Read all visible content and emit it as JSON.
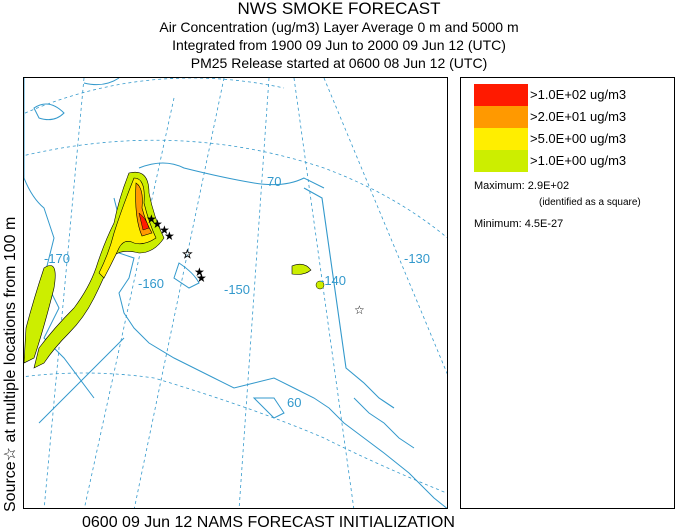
{
  "header": {
    "title": "NWS SMOKE FORECAST",
    "line1": "Air Concentration (ug/m3) Layer Average    0 m and  5000 m",
    "line2": "Integrated from 1900 09 Jun to 2000 09 Jun 12 (UTC)",
    "line3": "PM25 Release started at 0600 08 Jun 12 (UTC)"
  },
  "side_label": "Source☆ at multiple locations  from  100 m",
  "footer": "0600 09 Jun 12 NAMS FORECAST INITIALIZATION",
  "legend": {
    "items": [
      {
        "label": ">1.0E+02 ug/m3",
        "color": "#ff1a00"
      },
      {
        "label": ">2.0E+01 ug/m3",
        "color": "#ff9900"
      },
      {
        "label": ">5.0E+00 ug/m3",
        "color": "#ffee00"
      },
      {
        "label": ">1.0E+00 ug/m3",
        "color": "#ccee00"
      }
    ],
    "maximum": "Maximum: 2.9E+02",
    "maximum_note": "(identified as a square)",
    "minimum": "Minimum: 4.5E-27"
  },
  "map": {
    "graticule_labels": [
      "-170",
      "-160",
      "-150",
      "-140",
      "-130",
      "70",
      "60"
    ],
    "colors": {
      "coast": "#3399cc",
      "grid": "#3399cc",
      "border": "#3399cc"
    }
  }
}
